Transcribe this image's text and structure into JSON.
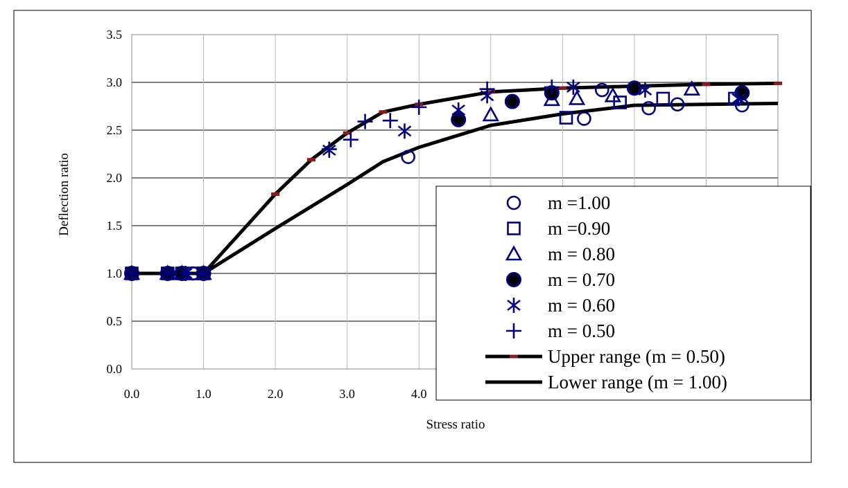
{
  "chart_data": {
    "type": "scatter",
    "xlabel": "Stress ratio",
    "ylabel": "Deflection ratio",
    "xlim": [
      0,
      9
    ],
    "ylim": [
      0,
      3.5
    ],
    "x_ticks": [
      "0.0",
      "1.0",
      "2.0",
      "3.0",
      "4.0"
    ],
    "y_ticks": [
      "0.0",
      "0.5",
      "1.0",
      "1.5",
      "2.0",
      "2.5",
      "3.0",
      "3.5"
    ],
    "grid": "both",
    "legend_position": "lower-right",
    "series": [
      {
        "name": "m =1.00",
        "marker": "circle-open",
        "color": "#000080",
        "points": [
          [
            0.0,
            1.0
          ],
          [
            0.5,
            1.0
          ],
          [
            0.7,
            1.0
          ],
          [
            0.85,
            1.0
          ],
          [
            1.0,
            1.0
          ],
          [
            3.85,
            2.22
          ],
          [
            6.3,
            2.62
          ],
          [
            6.55,
            2.92
          ],
          [
            7.2,
            2.73
          ],
          [
            7.6,
            2.77
          ],
          [
            8.5,
            2.76
          ]
        ]
      },
      {
        "name": "m =0.90",
        "marker": "square-open",
        "color": "#000080",
        "points": [
          [
            0.0,
            1.0
          ],
          [
            0.5,
            1.0
          ],
          [
            0.7,
            1.0
          ],
          [
            0.85,
            1.0
          ],
          [
            1.0,
            1.0
          ],
          [
            6.05,
            2.63
          ],
          [
            6.8,
            2.79
          ],
          [
            7.4,
            2.83
          ],
          [
            8.4,
            2.83
          ]
        ]
      },
      {
        "name": "m = 0.80",
        "marker": "triangle-open",
        "color": "#000080",
        "points": [
          [
            0.0,
            1.0
          ],
          [
            0.5,
            1.0
          ],
          [
            0.7,
            1.0
          ],
          [
            1.0,
            1.0
          ],
          [
            5.0,
            2.66
          ],
          [
            5.85,
            2.82
          ],
          [
            6.2,
            2.83
          ],
          [
            6.7,
            2.86
          ],
          [
            7.8,
            2.93
          ]
        ]
      },
      {
        "name": "m = 0.70",
        "marker": "circle-filled",
        "color": "#000080",
        "points": [
          [
            0.0,
            1.0
          ],
          [
            0.5,
            1.0
          ],
          [
            0.7,
            1.0
          ],
          [
            1.0,
            1.0
          ],
          [
            4.55,
            2.61
          ],
          [
            5.3,
            2.8
          ],
          [
            5.85,
            2.89
          ],
          [
            7.0,
            2.94
          ],
          [
            8.5,
            2.89
          ]
        ]
      },
      {
        "name": "m = 0.60",
        "marker": "asterisk",
        "color": "#000080",
        "points": [
          [
            0.0,
            1.0
          ],
          [
            0.5,
            1.0
          ],
          [
            0.75,
            1.0
          ],
          [
            1.0,
            1.0
          ],
          [
            2.75,
            2.29
          ],
          [
            3.8,
            2.49
          ],
          [
            4.55,
            2.71
          ],
          [
            4.95,
            2.86
          ],
          [
            6.15,
            2.95
          ],
          [
            7.15,
            2.92
          ],
          [
            8.45,
            2.83
          ]
        ]
      },
      {
        "name": "m = 0.50",
        "marker": "plus",
        "color": "#000080",
        "points": [
          [
            0.0,
            1.0
          ],
          [
            0.5,
            1.0
          ],
          [
            0.75,
            1.0
          ],
          [
            1.0,
            1.0
          ],
          [
            2.75,
            2.3
          ],
          [
            3.05,
            2.4
          ],
          [
            3.25,
            2.59
          ],
          [
            3.6,
            2.6
          ],
          [
            4.0,
            2.74
          ],
          [
            4.95,
            2.93
          ],
          [
            5.85,
            2.95
          ]
        ]
      },
      {
        "name": "Upper range (m = 0.50)",
        "marker": "line",
        "color": "#000000",
        "dash_color": "#8b1a1a",
        "points": [
          [
            0.0,
            1.0
          ],
          [
            0.5,
            1.0
          ],
          [
            1.0,
            1.0
          ],
          [
            2.0,
            1.83
          ],
          [
            2.5,
            2.19
          ],
          [
            3.0,
            2.47
          ],
          [
            3.5,
            2.69
          ],
          [
            4.0,
            2.77
          ],
          [
            5.0,
            2.9
          ],
          [
            6.0,
            2.94
          ],
          [
            7.0,
            2.96
          ],
          [
            8.0,
            2.98
          ],
          [
            9.0,
            2.99
          ]
        ]
      },
      {
        "name": "Lower range (m = 1.00)",
        "marker": "line",
        "color": "#000000",
        "points": [
          [
            0.0,
            1.0
          ],
          [
            0.5,
            1.0
          ],
          [
            1.0,
            1.0
          ],
          [
            2.0,
            1.47
          ],
          [
            3.0,
            1.93
          ],
          [
            3.5,
            2.17
          ],
          [
            4.0,
            2.32
          ],
          [
            5.0,
            2.55
          ],
          [
            6.0,
            2.67
          ],
          [
            7.0,
            2.76
          ],
          [
            8.0,
            2.77
          ],
          [
            9.0,
            2.78
          ]
        ]
      }
    ]
  }
}
